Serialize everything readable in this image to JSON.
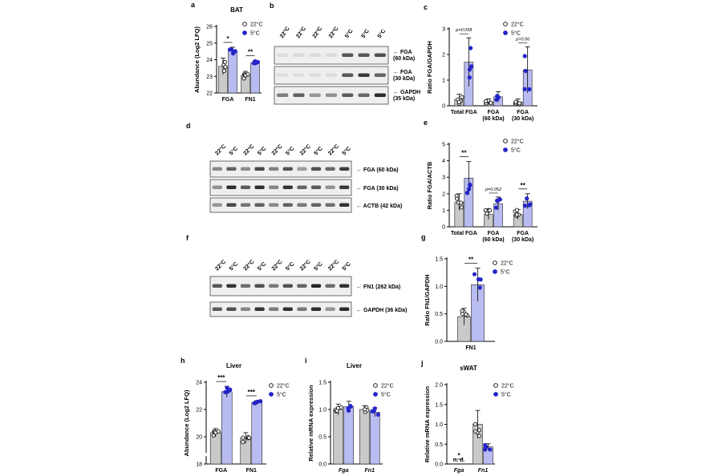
{
  "colors": {
    "c22": "#c9c9c9",
    "c5": "#b9bcf0",
    "pt22": "#222222",
    "pt5": "#2424c8",
    "blot_bg": "#efefef",
    "band": "#111111"
  },
  "legend": {
    "l22": "22°C",
    "l5": "5°C"
  },
  "panels": {
    "a": {
      "letter": "a",
      "title": "BAT",
      "ylabel": "Abundance (Log2 LFQ)",
      "yticks": [
        "22",
        "23",
        "24",
        "25",
        "26"
      ],
      "chart_data": {
        "type": "bar",
        "categories": [
          "FGA",
          "FN1"
        ],
        "ylim": [
          22,
          26
        ],
        "series": [
          {
            "name": "22°C",
            "values": [
              23.6,
              23.05
            ],
            "errors": [
              0.5,
              0.25
            ]
          },
          {
            "name": "5°C",
            "values": [
              24.55,
              23.8
            ],
            "errors": [
              0.2,
              0.15
            ]
          }
        ]
      },
      "sig": [
        "*",
        "**"
      ]
    },
    "c": {
      "letter": "c",
      "ylabel": "Ratio FGA/GAPDH",
      "yticks": [
        "0",
        "1",
        "2",
        "3"
      ],
      "chart_data": {
        "type": "bar",
        "categories": [
          "Total FGA",
          "FGA\n(60 kDa)",
          "FGA\n(30 kDa)"
        ],
        "ylim": [
          0,
          3
        ],
        "series": [
          {
            "name": "22°C",
            "values": [
              0.25,
              0.15,
              0.15
            ],
            "errors": [
              0.2,
              0.12,
              0.12
            ]
          },
          {
            "name": "5°C",
            "values": [
              1.7,
              0.35,
              1.4
            ],
            "errors": [
              0.95,
              0.2,
              0.9
            ]
          }
        ]
      },
      "pvals": [
        "p=0.058",
        "p=0.06"
      ]
    },
    "e": {
      "letter": "e",
      "ylabel": "Ratio FGA/ACTB",
      "yticks": [
        "0",
        "1",
        "2",
        "3",
        "4",
        "5"
      ],
      "chart_data": {
        "type": "bar",
        "categories": [
          "Total FGA",
          "FGA\n(60 kDa)",
          "FGA\n(30 kDa)"
        ],
        "ylim": [
          0,
          5
        ],
        "series": [
          {
            "name": "22°C",
            "values": [
              1.5,
              0.75,
              0.75
            ],
            "errors": [
              0.5,
              0.3,
              0.3
            ]
          },
          {
            "name": "5°C",
            "values": [
              2.95,
              1.4,
              1.55
            ],
            "errors": [
              1.0,
              0.4,
              0.45
            ]
          }
        ]
      },
      "sig": [
        "**",
        "**"
      ],
      "pvals": [
        "p=0.052"
      ]
    },
    "g": {
      "letter": "g",
      "ylabel": "Ratio FN1/GAPDH",
      "yticks": [
        "0.0",
        "0.5",
        "1.0",
        "1.5"
      ],
      "chart_data": {
        "type": "bar",
        "categories": [
          "FN1"
        ],
        "ylim": [
          0,
          1.5
        ],
        "series": [
          {
            "name": "22°C",
            "values": [
              0.45
            ],
            "errors": [
              0.15
            ]
          },
          {
            "name": "5°C",
            "values": [
              1.03
            ],
            "errors": [
              0.3
            ]
          }
        ]
      },
      "sig": [
        "**"
      ]
    },
    "h": {
      "letter": "h",
      "title": "Liver",
      "ylabel": "Abundance (Log2 LFQ)",
      "yticks": [
        "18",
        "20",
        "22",
        "24"
      ],
      "chart_data": {
        "type": "bar",
        "categories": [
          "FGA",
          "FN1"
        ],
        "ylim": [
          18,
          24
        ],
        "series": [
          {
            "name": "22°C",
            "values": [
              20.3,
              19.9
            ],
            "errors": [
              0.3,
              0.4
            ]
          },
          {
            "name": "5°C",
            "values": [
              23.3,
              22.5
            ],
            "errors": [
              0.4,
              0.15
            ]
          }
        ]
      },
      "sig": [
        "***",
        "***"
      ]
    },
    "i": {
      "letter": "i",
      "title": "Liver",
      "ylabel": "Relative mRNA expression",
      "yticks": [
        "0.0",
        "0.5",
        "1.0",
        "1.5"
      ],
      "chart_data": {
        "type": "bar",
        "categories": [
          "Fga",
          "Fn1"
        ],
        "ylim": [
          0,
          1.5
        ],
        "series": [
          {
            "name": "22°C",
            "values": [
              1.0,
              1.0
            ],
            "errors": [
              0.1,
              0.07
            ]
          },
          {
            "name": "5°C",
            "values": [
              1.05,
              0.95
            ],
            "errors": [
              0.1,
              0.08
            ]
          }
        ]
      }
    },
    "j": {
      "letter": "j",
      "title": "sWAT",
      "ylabel": "Relative mRNA expression",
      "yticks": [
        "0.0",
        "0.5",
        "1.0",
        "1.5",
        "2.0"
      ],
      "chart_data": {
        "type": "bar",
        "categories": [
          "Fga",
          "Fn1"
        ],
        "ylim": [
          0,
          2
        ],
        "series": [
          {
            "name": "22°C",
            "values": [
              0,
              1.0
            ],
            "errors": [
              0,
              0.35
            ]
          },
          {
            "name": "5°C",
            "values": [
              0,
              0.43
            ],
            "errors": [
              0,
              0.08
            ]
          }
        ]
      },
      "sig": [
        "*"
      ],
      "nd": "n. d."
    }
  },
  "blots": {
    "b": {
      "letter": "b",
      "lanes": [
        "22°C",
        "22°C",
        "22°C",
        "22°C",
        "5°C",
        "5°C",
        "5°C"
      ],
      "bands": [
        "FGA\n(60 kDa)",
        "FGA\n(30 kDa)",
        "GAPDH\n(35 kDa)"
      ]
    },
    "d": {
      "letter": "d",
      "lanes": [
        "22°C",
        "5°C",
        "22°C",
        "5°C",
        "22°C",
        "5°C",
        "22°C",
        "5°C",
        "22°C",
        "5°C"
      ],
      "bands": [
        "FGA (60 kDa)",
        "FGA (30 kDa)",
        "ACTB (42 kDa)"
      ]
    },
    "f": {
      "letter": "f",
      "lanes": [
        "22°C",
        "5°C",
        "22°C",
        "5°C",
        "22°C",
        "5°C",
        "22°C",
        "5°C",
        "22°C",
        "5°C"
      ],
      "bands": [
        "FN1 (262 kDa)",
        "GAPDH (36 kDa)"
      ]
    }
  },
  "arrow": "←"
}
